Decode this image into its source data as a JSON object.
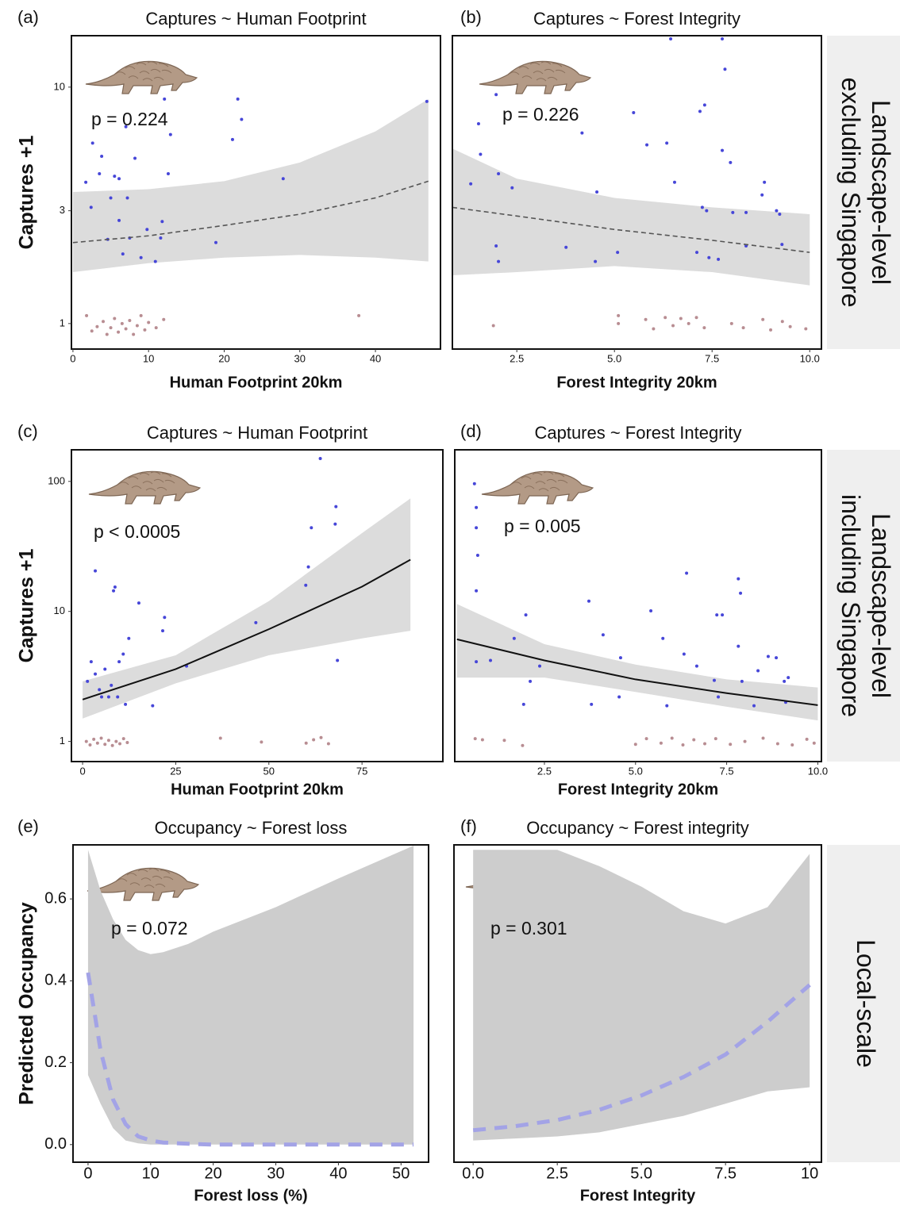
{
  "row_labels": [
    [
      "Landscape-level",
      "excluding Singapore"
    ],
    [
      "Landscape-level",
      "including Singapore"
    ],
    [
      "Local-scale"
    ]
  ],
  "chart_data": [
    {
      "type": "scatter",
      "panel_label": "(a)",
      "title": "Captures ~ Human Footprint",
      "annotation": "p = 0.224",
      "xlabel": "Human Footprint 20km",
      "ylabel": "Captures +1",
      "log_y": true,
      "xlim": [
        -0.2,
        48.6
      ],
      "ylim": [
        0.78,
        16.5
      ],
      "xticks": [
        0,
        10,
        20,
        30,
        40
      ],
      "yticks": [
        1,
        3,
        10
      ],
      "points": {
        "color": "#4646d8",
        "x": [
          1.7,
          2.6,
          3.5,
          2.4,
          3.8,
          4.6,
          5.0,
          5.5,
          6.1,
          6.1,
          6.6,
          7.0,
          7.2,
          7.5,
          8.2,
          9.0,
          9.8,
          10.9,
          11.6,
          11.8,
          12.1,
          12.6,
          12.9,
          18.9,
          21.1,
          21.8,
          22.3,
          27.8,
          46.8
        ],
        "values": [
          3.96,
          5.8,
          4.3,
          3.1,
          5.1,
          2.27,
          3.4,
          4.2,
          4.1,
          2.73,
          1.97,
          6.8,
          3.4,
          2.3,
          5.0,
          1.9,
          2.5,
          1.83,
          2.3,
          2.7,
          8.9,
          4.3,
          6.3,
          2.2,
          6.0,
          8.9,
          7.3,
          4.1,
          8.7
        ]
      },
      "zero_points": {
        "color": "#b88d92",
        "x": [
          1.8,
          2.5,
          3.2,
          4.0,
          4.5,
          5.0,
          5.5,
          6.0,
          6.5,
          7.0,
          7.5,
          8.0,
          8.5,
          9.0,
          9.5,
          10.0,
          11.0,
          12.0,
          37.8
        ],
        "values": [
          1.08,
          0.93,
          0.97,
          1.02,
          0.9,
          0.96,
          1.05,
          0.92,
          1.0,
          0.95,
          1.03,
          0.9,
          0.98,
          1.08,
          0.94,
          1.01,
          0.96,
          1.04,
          1.08
        ]
      },
      "fit": {
        "color": "#555555",
        "style": "dashed",
        "x": [
          0,
          10,
          20,
          30,
          40,
          47
        ],
        "values": [
          2.2,
          2.35,
          2.6,
          2.9,
          3.4,
          4.0
        ],
        "upper": [
          3.6,
          3.7,
          4.0,
          4.8,
          6.5,
          8.9
        ],
        "lower": [
          1.65,
          1.8,
          1.9,
          1.95,
          1.9,
          1.83
        ]
      },
      "band_color": "#dcdcdc"
    },
    {
      "type": "scatter",
      "panel_label": "(b)",
      "title": "Captures ~ Forest Integrity",
      "annotation": "p = 0.226",
      "xlabel": "Forest Integrity 20km",
      "log_y": true,
      "xlim": [
        0.85,
        10.3
      ],
      "ylim": [
        0.78,
        16.5
      ],
      "xticks": [
        2.5,
        {
          "value": 5,
          "label": "5.0"
        },
        7.5,
        {
          "value": 10,
          "label": "10.0"
        }
      ],
      "points": {
        "color": "#4646d8",
        "x": [
          1.32,
          1.52,
          1.57,
          1.97,
          2.03,
          2.38,
          1.97,
          2.03,
          3.76,
          4.17,
          4.55,
          4.51,
          5.08,
          5.49,
          5.83,
          6.44,
          6.34,
          6.54,
          7.11,
          7.19,
          7.31,
          7.25,
          7.36,
          7.42,
          7.66,
          7.76,
          7.76,
          7.83,
          7.97,
          8.03,
          8.37,
          8.37,
          8.78,
          8.84,
          9.15,
          9.23,
          9.29
        ],
        "values": [
          3.9,
          7.0,
          5.2,
          9.3,
          4.3,
          3.75,
          2.13,
          1.83,
          2.1,
          6.4,
          3.6,
          1.83,
          2.0,
          7.8,
          5.7,
          16,
          5.8,
          3.96,
          2.0,
          7.9,
          8.4,
          3.1,
          3.0,
          1.9,
          1.87,
          16,
          5.4,
          11.9,
          4.8,
          2.95,
          2.95,
          2.13,
          3.5,
          3.96,
          3.0,
          2.9,
          2.16
        ]
      },
      "zero_points": {
        "color": "#b88d92",
        "x": [
          1.9,
          5.1,
          5.1,
          5.8,
          6.0,
          6.3,
          6.5,
          6.7,
          6.9,
          7.1,
          7.3,
          8.0,
          8.3,
          8.8,
          9.0,
          9.3,
          9.5,
          9.9
        ],
        "values": [
          0.98,
          1.08,
          1.0,
          1.04,
          0.95,
          1.06,
          0.98,
          1.05,
          1.0,
          1.06,
          0.96,
          1.0,
          0.96,
          1.04,
          0.94,
          1.02,
          0.97,
          0.95
        ]
      },
      "fit": {
        "color": "#555555",
        "style": "dashed",
        "x": [
          0.85,
          2.5,
          5,
          7.5,
          10
        ],
        "values": [
          3.1,
          2.85,
          2.5,
          2.25,
          2.0
        ],
        "upper": [
          5.5,
          4.1,
          3.4,
          3.1,
          2.9
        ],
        "lower": [
          1.6,
          1.65,
          1.75,
          1.65,
          1.45
        ]
      },
      "band_color": "#dcdcdc"
    },
    {
      "type": "scatter",
      "panel_label": "(c)",
      "title": "Captures ~ Human Footprint",
      "annotation": "p < 0.0005",
      "xlabel": "Human Footprint 20km",
      "ylabel": "Captures +1",
      "log_y": true,
      "xlim": [
        -3,
        96.7
      ],
      "ylim": [
        0.7,
        175
      ],
      "xticks": [
        0,
        25,
        50,
        75
      ],
      "yticks": [
        1,
        10,
        100
      ],
      "points": {
        "color": "#4646d8",
        "x": [
          3.4,
          2.3,
          3.4,
          4.5,
          5.1,
          6.0,
          7.0,
          8.3,
          8.7,
          9.4,
          10.9,
          11.5,
          12.4,
          15.1,
          18.8,
          21.5,
          22.0,
          27.9,
          46.5,
          59.9,
          60.6,
          61.4,
          63.8,
          67.8,
          68.0,
          68.4,
          1.3,
          7.7,
          9.8
        ],
        "values": [
          20.5,
          4.1,
          3.3,
          2.5,
          2.2,
          3.6,
          2.2,
          14.4,
          15.4,
          2.2,
          4.7,
          1.93,
          6.2,
          11.6,
          1.88,
          7.1,
          9.0,
          3.8,
          8.2,
          15.9,
          22,
          44,
          150,
          47,
          64,
          4.2,
          2.9,
          2.7,
          4.1
        ]
      },
      "zero_points": {
        "color": "#b88d92",
        "x": [
          1,
          2,
          3,
          4,
          5,
          6,
          7,
          8,
          9,
          10,
          11,
          12,
          37,
          48,
          60,
          62,
          64,
          66
        ],
        "values": [
          1.0,
          0.94,
          1.04,
          0.97,
          1.06,
          0.95,
          1.02,
          0.93,
          1.0,
          0.96,
          1.05,
          0.98,
          1.06,
          0.99,
          0.97,
          1.03,
          1.07,
          0.96
        ]
      },
      "fit": {
        "color": "#111111",
        "style": "solid",
        "x": [
          0,
          25,
          50,
          75,
          88
        ],
        "values": [
          2.1,
          3.6,
          7.3,
          15.5,
          25
        ],
        "upper": [
          2.9,
          4.6,
          12,
          40,
          74
        ],
        "lower": [
          1.5,
          2.8,
          4.6,
          6.2,
          7.1
        ]
      },
      "band_color": "#dcdcdc"
    },
    {
      "type": "scatter",
      "panel_label": "(d)",
      "title": "Captures ~ Forest Integrity",
      "annotation": "p = 0.005",
      "xlabel": "Forest Integrity 20km",
      "log_y": true,
      "xlim": [
        0.04,
        10.1
      ],
      "ylim": [
        0.7,
        175
      ],
      "xticks": [
        2.5,
        {
          "value": 5,
          "label": "5.0"
        },
        7.5,
        {
          "value": 10,
          "label": "10.0"
        }
      ],
      "points": {
        "color": "#4646d8",
        "x": [
          0.58,
          0.63,
          0.63,
          0.67,
          0.63,
          0.63,
          1.02,
          1.67,
          1.99,
          1.93,
          2.11,
          2.37,
          3.72,
          3.79,
          4.11,
          4.59,
          4.55,
          5.42,
          5.75,
          5.86,
          6.4,
          6.33,
          6.68,
          7.23,
          7.38,
          7.16,
          7.27,
          7.82,
          7.88,
          7.82,
          7.92,
          8.25,
          8.36,
          8.64,
          8.86,
          9.08,
          9.19,
          9.12
        ],
        "values": [
          96,
          63,
          44,
          27,
          14.4,
          4.1,
          4.2,
          6.2,
          9.4,
          1.93,
          2.9,
          3.8,
          12,
          1.93,
          6.6,
          4.4,
          2.2,
          10.1,
          6.2,
          1.88,
          19.7,
          4.7,
          3.8,
          9.4,
          9.4,
          2.95,
          2.2,
          17.8,
          13.8,
          5.4,
          2.9,
          1.88,
          3.5,
          4.5,
          4.4,
          2.9,
          3.1,
          2.0
        ]
      },
      "zero_points": {
        "color": "#b88d92",
        "x": [
          0.6,
          0.8,
          1.4,
          1.9,
          5.0,
          5.3,
          5.7,
          6.0,
          6.3,
          6.6,
          6.9,
          7.2,
          7.6,
          8.0,
          8.5,
          8.9,
          9.3,
          9.7,
          9.9
        ],
        "values": [
          1.05,
          1.03,
          1.02,
          0.93,
          0.95,
          1.05,
          0.97,
          1.06,
          0.94,
          1.03,
          0.96,
          1.05,
          0.95,
          1.0,
          1.06,
          0.96,
          0.94,
          1.04,
          0.97
        ]
      },
      "fit": {
        "color": "#111111",
        "style": "solid",
        "x": [
          0.1,
          2.5,
          5,
          7.5,
          10
        ],
        "values": [
          6.1,
          4.2,
          3.0,
          2.35,
          1.9
        ],
        "upper": [
          11.4,
          5.6,
          3.9,
          3.0,
          2.6
        ],
        "lower": [
          3.1,
          3.1,
          2.4,
          1.85,
          1.45
        ]
      },
      "band_color": "#dcdcdc"
    },
    {
      "type": "line",
      "panel_label": "(e)",
      "title": "Occupancy ~ Forest loss",
      "annotation": "p = 0.072",
      "xlabel": "Forest loss (%)",
      "ylabel": "Predicted Occupancy",
      "xlim": [
        -2.4,
        54.4
      ],
      "ylim": [
        -0.043,
        0.732
      ],
      "xticks": [
        0,
        10,
        20,
        30,
        40,
        50
      ],
      "yticks": [
        {
          "value": 0,
          "label": "0.0"
        },
        0.2,
        0.4,
        0.6
      ],
      "fit": {
        "color": "#a3a3e6",
        "style": "dashed",
        "x": [
          0,
          2,
          4,
          6,
          8,
          10,
          12,
          16,
          20,
          30,
          40,
          52
        ],
        "values": [
          0.42,
          0.23,
          0.11,
          0.05,
          0.02,
          0.01,
          0.005,
          0.002,
          0,
          0,
          0,
          0
        ],
        "upper": [
          0.72,
          0.62,
          0.55,
          0.5,
          0.475,
          0.465,
          0.47,
          0.49,
          0.52,
          0.58,
          0.65,
          0.73
        ],
        "lower": [
          0.17,
          0.1,
          0.04,
          0.01,
          0.003,
          0,
          0,
          0,
          0,
          0,
          0,
          0
        ]
      },
      "band_color": "#cdcdcd"
    },
    {
      "type": "line",
      "panel_label": "(f)",
      "title": "Occupancy ~ Forest integrity",
      "annotation": "p = 0.301",
      "xlabel": "Forest Integrity",
      "xlim": [
        -0.57,
        10.35
      ],
      "ylim": [
        -0.043,
        0.732
      ],
      "xticks": [
        {
          "value": 0,
          "label": "0.0"
        },
        2.5,
        {
          "value": 5,
          "label": "5.0"
        },
        7.5,
        10
      ],
      "fit": {
        "color": "#a3a3e6",
        "style": "dashed",
        "x": [
          0,
          1.25,
          2.5,
          3.75,
          5,
          6.25,
          7.5,
          8.75,
          10
        ],
        "values": [
          0.035,
          0.045,
          0.06,
          0.085,
          0.12,
          0.165,
          0.22,
          0.3,
          0.39
        ],
        "upper": [
          0.72,
          0.72,
          0.72,
          0.68,
          0.63,
          0.57,
          0.54,
          0.58,
          0.71
        ],
        "lower": [
          0.01,
          0.015,
          0.02,
          0.03,
          0.05,
          0.07,
          0.1,
          0.13,
          0.14
        ]
      },
      "band_color": "#cdcdcd"
    }
  ]
}
